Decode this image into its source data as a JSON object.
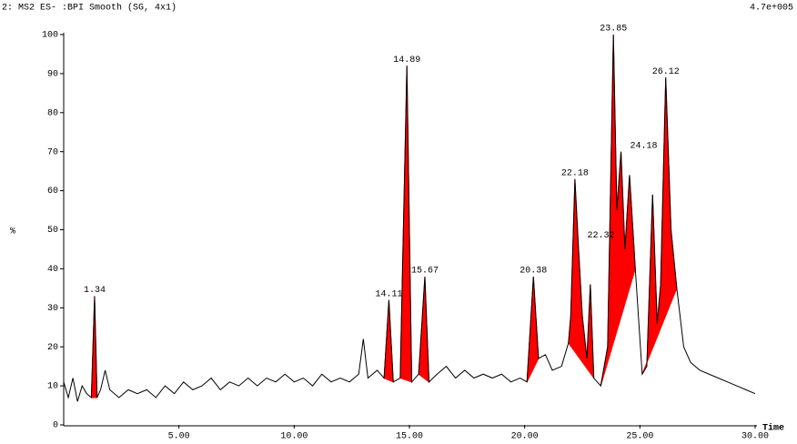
{
  "chart_data": {
    "type": "line",
    "title": "2: MS2 ES- :BPI Smooth (SG, 4x1)",
    "intensity": "4.7e+005",
    "ylabel": "%",
    "xlabel": "Time",
    "color": "#000000",
    "peak_color": "#ff0000",
    "x": [
      0,
      0.2,
      0.4,
      0.6,
      0.8,
      1.0,
      1.2,
      1.34,
      1.45,
      1.6,
      1.8,
      2.0,
      2.4,
      2.8,
      3.2,
      3.6,
      4.0,
      4.4,
      4.8,
      5.2,
      5.6,
      6.0,
      6.4,
      6.8,
      7.2,
      7.6,
      8.0,
      8.4,
      8.8,
      9.2,
      9.6,
      10.0,
      10.4,
      10.8,
      11.2,
      11.6,
      12.0,
      12.4,
      12.8,
      13.0,
      13.2,
      13.6,
      13.9,
      14.11,
      14.3,
      14.6,
      14.89,
      15.1,
      15.4,
      15.67,
      15.85,
      16.2,
      16.6,
      17.0,
      17.4,
      17.8,
      18.2,
      18.6,
      19.0,
      19.4,
      19.8,
      20.1,
      20.38,
      20.6,
      20.9,
      21.2,
      21.6,
      21.9,
      22.0,
      22.18,
      22.32,
      22.5,
      22.7,
      22.85,
      23.0,
      23.3,
      23.6,
      23.85,
      24.0,
      24.18,
      24.35,
      24.55,
      24.8,
      25.1,
      25.3,
      25.55,
      25.75,
      25.9,
      26.12,
      26.35,
      26.6,
      26.9,
      27.2,
      27.6,
      28.0,
      28.4,
      28.8,
      29.2,
      29.6,
      30.0
    ],
    "values": [
      11,
      7,
      12,
      6,
      10,
      8,
      7,
      33,
      7,
      9,
      14,
      9,
      7,
      9,
      8,
      9,
      7,
      10,
      8,
      11,
      9,
      10,
      12,
      9,
      11,
      10,
      12,
      10,
      12,
      11,
      13,
      11,
      12,
      10,
      13,
      11,
      12,
      11,
      13,
      22,
      12,
      14,
      12,
      32,
      11,
      12,
      92,
      11,
      13,
      38,
      11,
      13,
      15,
      12,
      14,
      12,
      13,
      12,
      13,
      11,
      12,
      11,
      38,
      17,
      18,
      14,
      15,
      21,
      28,
      63,
      47,
      28,
      17,
      36,
      12,
      10,
      20,
      100,
      55,
      70,
      45,
      64,
      40,
      13,
      15,
      59,
      26,
      36,
      89,
      50,
      35,
      20,
      16,
      14,
      13,
      12,
      11,
      10,
      9,
      8
    ],
    "regions": [
      [
        1.2,
        1.45
      ],
      [
        13.9,
        14.3
      ],
      [
        14.6,
        15.1
      ],
      [
        15.4,
        15.85
      ],
      [
        20.1,
        20.6
      ],
      [
        21.9,
        23.0
      ],
      [
        23.3,
        24.8
      ],
      [
        25.1,
        26.6
      ]
    ],
    "peaks": [
      {
        "time": 1.34,
        "height": 33
      },
      {
        "time": 14.11,
        "height": 32
      },
      {
        "time": 14.89,
        "height": 92
      },
      {
        "time": 15.67,
        "height": 38
      },
      {
        "time": 20.38,
        "height": 38
      },
      {
        "time": 22.18,
        "height": 63
      },
      {
        "time": 22.32,
        "height": 47
      },
      {
        "time": 23.85,
        "height": 100
      },
      {
        "time": 24.18,
        "height": 70
      },
      {
        "time": 26.12,
        "height": 89
      }
    ],
    "xlim": [
      0,
      30
    ],
    "xticks": [
      {
        "value": 5,
        "label": "5.00"
      },
      {
        "value": 10,
        "label": "10.00"
      },
      {
        "value": 15,
        "label": "15.00"
      },
      {
        "value": 20,
        "label": "20.00"
      },
      {
        "value": 25,
        "label": "25.00"
      },
      {
        "value": 30,
        "label": "30.00"
      }
    ],
    "ylim": [
      0,
      100
    ],
    "yticks": [
      0,
      10,
      20,
      30,
      40,
      50,
      60,
      70,
      80,
      90,
      100
    ]
  }
}
